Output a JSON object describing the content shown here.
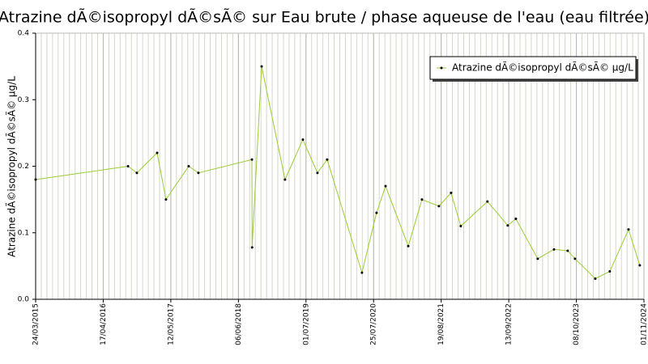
{
  "chart_data": {
    "type": "line",
    "title": "Atrazine dÃ©isopropyl dÃ©sÃ© sur Eau brute / phase aqueuse de l'eau (eau filtrée)",
    "y_label": "Atrazine dÃ©isopropyl dÃ©sÃ© µg/L",
    "x": [
      "2015-03-24",
      "2016-09-07",
      "2016-10-28",
      "2017-02-22",
      "2017-04-14",
      "2017-08-23",
      "2017-10-18",
      "2018-08-23",
      "2018-08-24",
      "2018-10-18",
      "2019-03-02",
      "2019-06-13",
      "2019-09-05",
      "2019-10-31",
      "2020-05-19",
      "2020-08-11",
      "2020-10-02",
      "2021-02-10",
      "2021-04-30",
      "2021-08-06",
      "2021-10-15",
      "2021-12-10",
      "2022-05-13",
      "2022-09-07",
      "2022-10-24",
      "2023-02-27",
      "2023-06-01",
      "2023-08-19",
      "2023-09-30",
      "2024-01-25",
      "2024-04-18",
      "2024-08-04",
      "2024-10-08"
    ],
    "series": [
      {
        "name": "Atrazine dÃ©isopropyl dÃ©sÃ© µg/L",
        "color": "#9acd32",
        "values": [
          0.18,
          0.2,
          0.19,
          0.22,
          0.15,
          0.2,
          0.19,
          0.21,
          0.078,
          0.35,
          0.18,
          0.24,
          0.19,
          0.21,
          0.04,
          0.13,
          0.17,
          0.08,
          0.15,
          0.14,
          0.16,
          0.11,
          0.147,
          0.111,
          0.121,
          0.061,
          0.075,
          0.073,
          0.061,
          0.031,
          0.042,
          0.105,
          0.051
        ]
      }
    ],
    "xlim": [
      "2015-03-24",
      "2024-11-01"
    ],
    "xticks": [
      {
        "value": "2015-03-24",
        "label": "24/03/2015"
      },
      {
        "value": "2016-04-17",
        "label": "17/04/2016"
      },
      {
        "value": "2017-05-12",
        "label": "12/05/2017"
      },
      {
        "value": "2018-06-06",
        "label": "06/06/2018"
      },
      {
        "value": "2019-07-01",
        "label": "01/07/2019"
      },
      {
        "value": "2020-07-25",
        "label": "25/07/2020"
      },
      {
        "value": "2021-08-19",
        "label": "19/08/2021"
      },
      {
        "value": "2022-09-13",
        "label": "13/09/2022"
      },
      {
        "value": "2023-10-08",
        "label": "08/10/2023"
      },
      {
        "value": "2024-11-01",
        "label": "01/11/2024"
      }
    ],
    "ylim": [
      0,
      0.4
    ],
    "yticks": [
      {
        "value": 0,
        "label": "0.0"
      },
      0.1,
      0.2,
      0.3,
      0.4
    ],
    "grid": true,
    "legend": "upper right"
  }
}
